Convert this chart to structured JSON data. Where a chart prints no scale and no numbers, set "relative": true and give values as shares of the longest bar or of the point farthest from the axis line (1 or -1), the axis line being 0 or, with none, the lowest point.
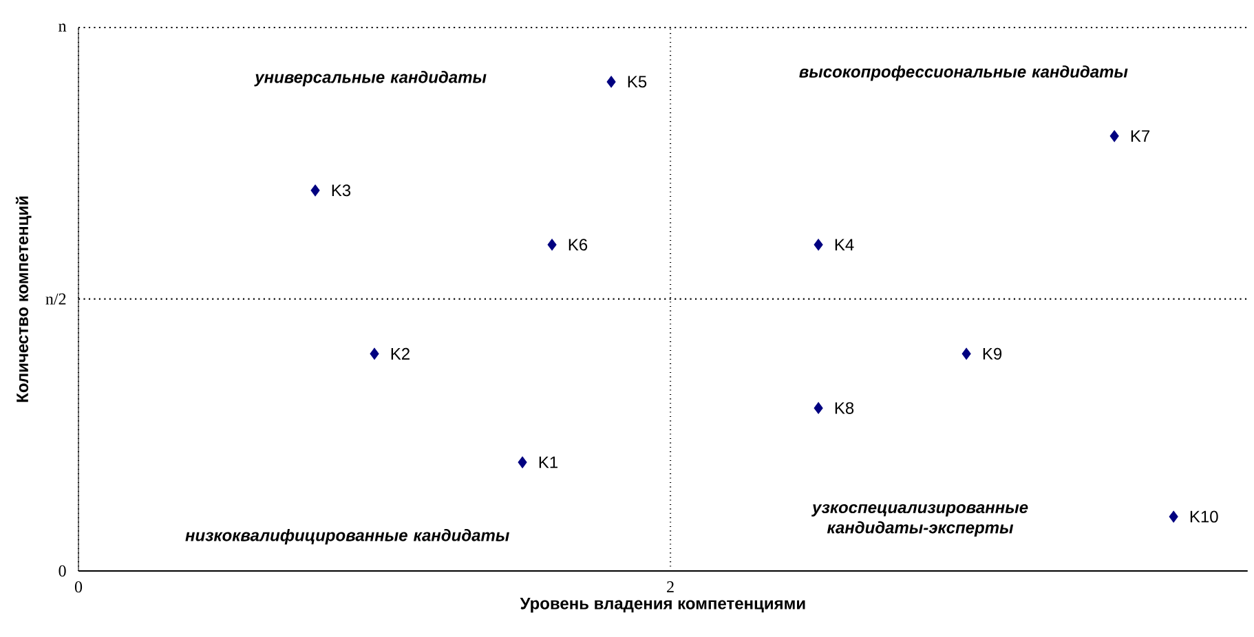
{
  "chart_data": {
    "type": "scatter",
    "xlabel": "Уровень владения компетенциями",
    "ylabel": "Количество компетенций",
    "x": [
      1.5,
      1.0,
      0.8,
      2.5,
      1.8,
      1.6,
      3.5,
      2.5,
      3.0,
      3.7
    ],
    "series": [
      {
        "color": "#000080",
        "values": [
          0.222,
          0.444,
          0.778,
          0.667,
          1,
          0.667,
          0.889,
          0.333,
          0.444,
          0.111
        ]
      }
    ],
    "relative": true,
    "xlim": [
      0,
      3.95
    ],
    "xticks": [
      0,
      2
    ],
    "ref_lines": [
      {
        "axis": "y",
        "value": 0,
        "label": "0"
      },
      {
        "axis": "y",
        "value": 0.556,
        "label": "n/2",
        "line_style": "dotted"
      },
      {
        "axis": "y",
        "value": 1.111,
        "label": "n",
        "line_style": "dotted"
      }
    ],
    "grid": "x",
    "marker": "diamond",
    "annotations": [
      {
        "text": "K1",
        "x": 1.5,
        "y": 0.222
      },
      {
        "text": "K2",
        "x": 1.0,
        "y": 0.444
      },
      {
        "text": "K3",
        "x": 0.8,
        "y": 0.778
      },
      {
        "text": "K4",
        "x": 2.5,
        "y": 0.667
      },
      {
        "text": "K5",
        "x": 1.8,
        "y": 1
      },
      {
        "text": "K6",
        "x": 1.6,
        "y": 0.667
      },
      {
        "text": "K7",
        "x": 3.5,
        "y": 0.889
      },
      {
        "text": "K8",
        "x": 2.5,
        "y": 0.333
      },
      {
        "text": "K9",
        "x": 3.0,
        "y": 0.444
      },
      {
        "text": "K10",
        "x": 3.7,
        "y": 0.111
      },
      "универсальные кандидаты",
      "высокопрофессиональные кандидаты",
      "низкоквалифицированные кандидаты",
      "узкоспециализированные кандидаты-эксперты"
    ]
  }
}
